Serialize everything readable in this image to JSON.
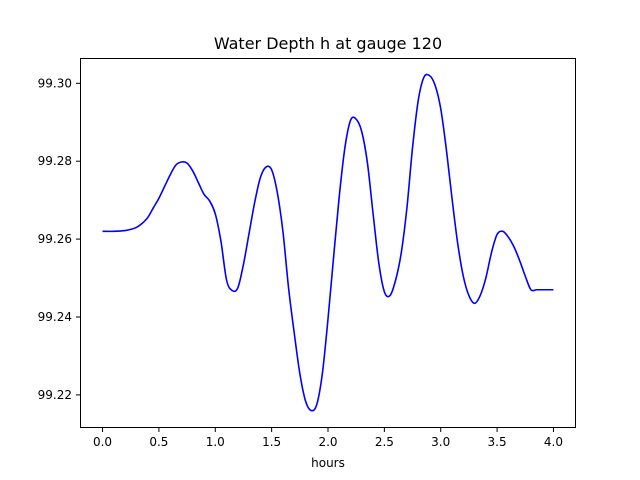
{
  "chart_data": {
    "type": "line",
    "title": "Water Depth h at gauge 120",
    "xlabel": "hours",
    "ylabel": "",
    "xlim": [
      -0.2,
      4.2
    ],
    "ylim": [
      99.2115,
      99.3065
    ],
    "x_ticks": [
      0.0,
      0.5,
      1.0,
      1.5,
      2.0,
      2.5,
      3.0,
      3.5,
      4.0
    ],
    "x_tick_labels": [
      "0.0",
      "0.5",
      "1.0",
      "1.5",
      "2.0",
      "2.5",
      "3.0",
      "3.5",
      "4.0"
    ],
    "y_ticks": [
      99.22,
      99.24,
      99.26,
      99.28,
      99.3
    ],
    "y_tick_labels": [
      "99.22",
      "99.24",
      "99.26",
      "99.28",
      "99.30"
    ],
    "grid": false,
    "legend": "none",
    "series": [
      {
        "color": "#0000ff",
        "x": [
          0.0,
          0.1,
          0.2,
          0.25,
          0.3,
          0.35,
          0.4,
          0.45,
          0.5,
          0.55,
          0.6,
          0.65,
          0.7,
          0.75,
          0.8,
          0.85,
          0.9,
          0.95,
          1.0,
          1.05,
          1.1,
          1.15,
          1.2,
          1.25,
          1.3,
          1.35,
          1.4,
          1.45,
          1.5,
          1.55,
          1.6,
          1.65,
          1.7,
          1.75,
          1.8,
          1.85,
          1.9,
          1.95,
          2.0,
          2.05,
          2.1,
          2.15,
          2.2,
          2.25,
          2.3,
          2.35,
          2.4,
          2.45,
          2.5,
          2.55,
          2.6,
          2.65,
          2.7,
          2.75,
          2.8,
          2.85,
          2.9,
          2.95,
          3.0,
          3.05,
          3.1,
          3.15,
          3.2,
          3.25,
          3.3,
          3.35,
          3.4,
          3.45,
          3.5,
          3.55,
          3.6,
          3.65,
          3.7,
          3.75,
          3.8,
          3.85,
          3.9,
          3.95,
          4.0
        ],
        "y": [
          99.262,
          99.262,
          99.2622,
          99.2625,
          99.263,
          99.264,
          99.2655,
          99.268,
          99.2705,
          99.2735,
          99.2765,
          99.279,
          99.2798,
          99.2795,
          99.2775,
          99.2745,
          99.2715,
          99.2698,
          99.2665,
          99.2595,
          99.2495,
          99.2468,
          99.2475,
          99.2535,
          99.2615,
          99.2695,
          99.2758,
          99.2785,
          99.2778,
          99.272,
          99.262,
          99.2475,
          99.236,
          99.2255,
          99.2185,
          99.216,
          99.2175,
          99.2255,
          99.2395,
          99.2555,
          99.271,
          99.2835,
          99.2905,
          99.2908,
          99.2875,
          99.2795,
          99.2665,
          99.254,
          99.2465,
          99.2455,
          99.2495,
          99.2565,
          99.268,
          99.2835,
          99.2955,
          99.3015,
          99.302,
          99.2995,
          99.2935,
          99.283,
          99.2705,
          99.259,
          99.2505,
          99.2455,
          99.2435,
          99.2455,
          99.25,
          99.2565,
          99.2612,
          99.262,
          99.2605,
          99.258,
          99.2545,
          99.2505,
          99.247,
          99.247,
          99.247,
          99.247,
          99.247
        ]
      }
    ]
  }
}
